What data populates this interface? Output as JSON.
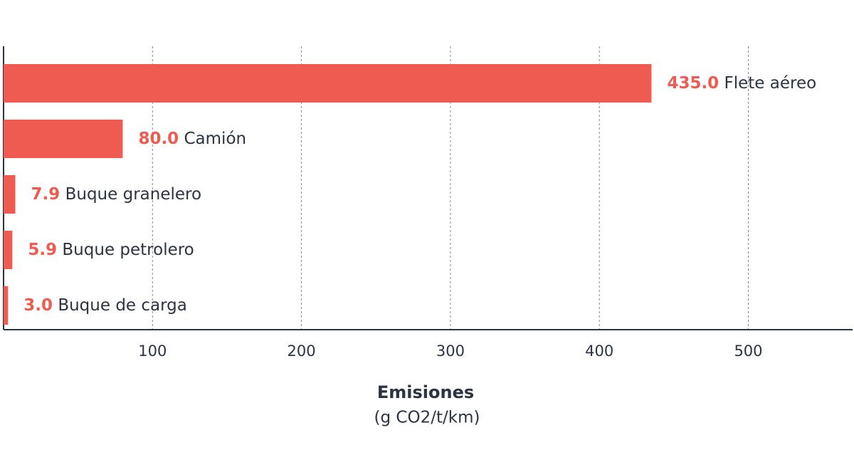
{
  "chart_data": {
    "type": "hbar",
    "categories": [
      "Flete aéreo",
      "Camión",
      "Buque granelero",
      "Buque petrolero",
      "Buque de carga"
    ],
    "values": [
      435,
      80,
      7.9,
      5.9,
      3.0
    ],
    "value_labels": [
      "435.0",
      "80.0",
      "7.9",
      "5.9",
      "3.0"
    ],
    "color": "#ef5b50",
    "xlim": [
      0,
      570
    ],
    "xticks": [
      100,
      200,
      300,
      400,
      500
    ],
    "grid": true,
    "x_label": "Emisiones",
    "x_label_units": "(g CO2/t/km)"
  }
}
